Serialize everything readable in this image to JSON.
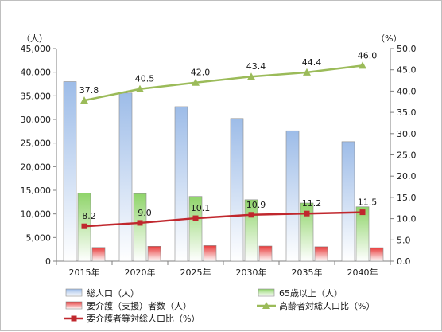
{
  "chart_data": {
    "type": "bar",
    "categories": [
      "2015年",
      "2020年",
      "2025年",
      "2030年",
      "2035年",
      "2040年"
    ],
    "left_axis": {
      "unit": "（人）",
      "min": 0,
      "max": 45000,
      "step": 5000,
      "tick_labels": [
        "0",
        "5,000",
        "10,000",
        "15,000",
        "20,000",
        "25,000",
        "30,000",
        "35,000",
        "40,000",
        "45,000"
      ]
    },
    "right_axis": {
      "unit": "（%）",
      "min": 0,
      "max": 50,
      "step": 5,
      "tick_labels": [
        "0.0",
        "5.0",
        "10.0",
        "15.0",
        "20.0",
        "25.0",
        "30.0",
        "35.0",
        "40.0",
        "45.0",
        "50.0"
      ]
    },
    "bar_series": [
      {
        "name": "総人口（人）",
        "axis": "left",
        "color": "#9dbce8",
        "values": [
          38000,
          35600,
          32700,
          30200,
          27600,
          25300
        ]
      },
      {
        "name": "65歳以上（人）",
        "axis": "left",
        "color": "#8fd46a",
        "values": [
          14400,
          14300,
          13700,
          13000,
          12300,
          11500
        ]
      },
      {
        "name": "要介護（支援）者数（人）",
        "axis": "left",
        "color": "#e83a3a",
        "values": [
          2900,
          3150,
          3300,
          3200,
          3050,
          2850
        ]
      }
    ],
    "line_series": [
      {
        "name": "高齢者対総人口比（%）",
        "axis": "right",
        "color": "#9bbb59",
        "marker": "triangle",
        "values": [
          37.8,
          40.5,
          42.0,
          43.4,
          44.4,
          46.0
        ],
        "labels": [
          "37.8",
          "40.5",
          "42.0",
          "43.4",
          "44.4",
          "46.0"
        ]
      },
      {
        "name": "要介護者等対総人口比（%）",
        "axis": "right",
        "color": "#c0272d",
        "marker": "square",
        "values": [
          8.2,
          9.0,
          10.1,
          10.9,
          11.2,
          11.5
        ],
        "labels": [
          "8.2",
          "9.0",
          "10.1",
          "10.9",
          "11.2",
          "11.5"
        ]
      }
    ],
    "grid": false,
    "legend_position": "bottom"
  }
}
